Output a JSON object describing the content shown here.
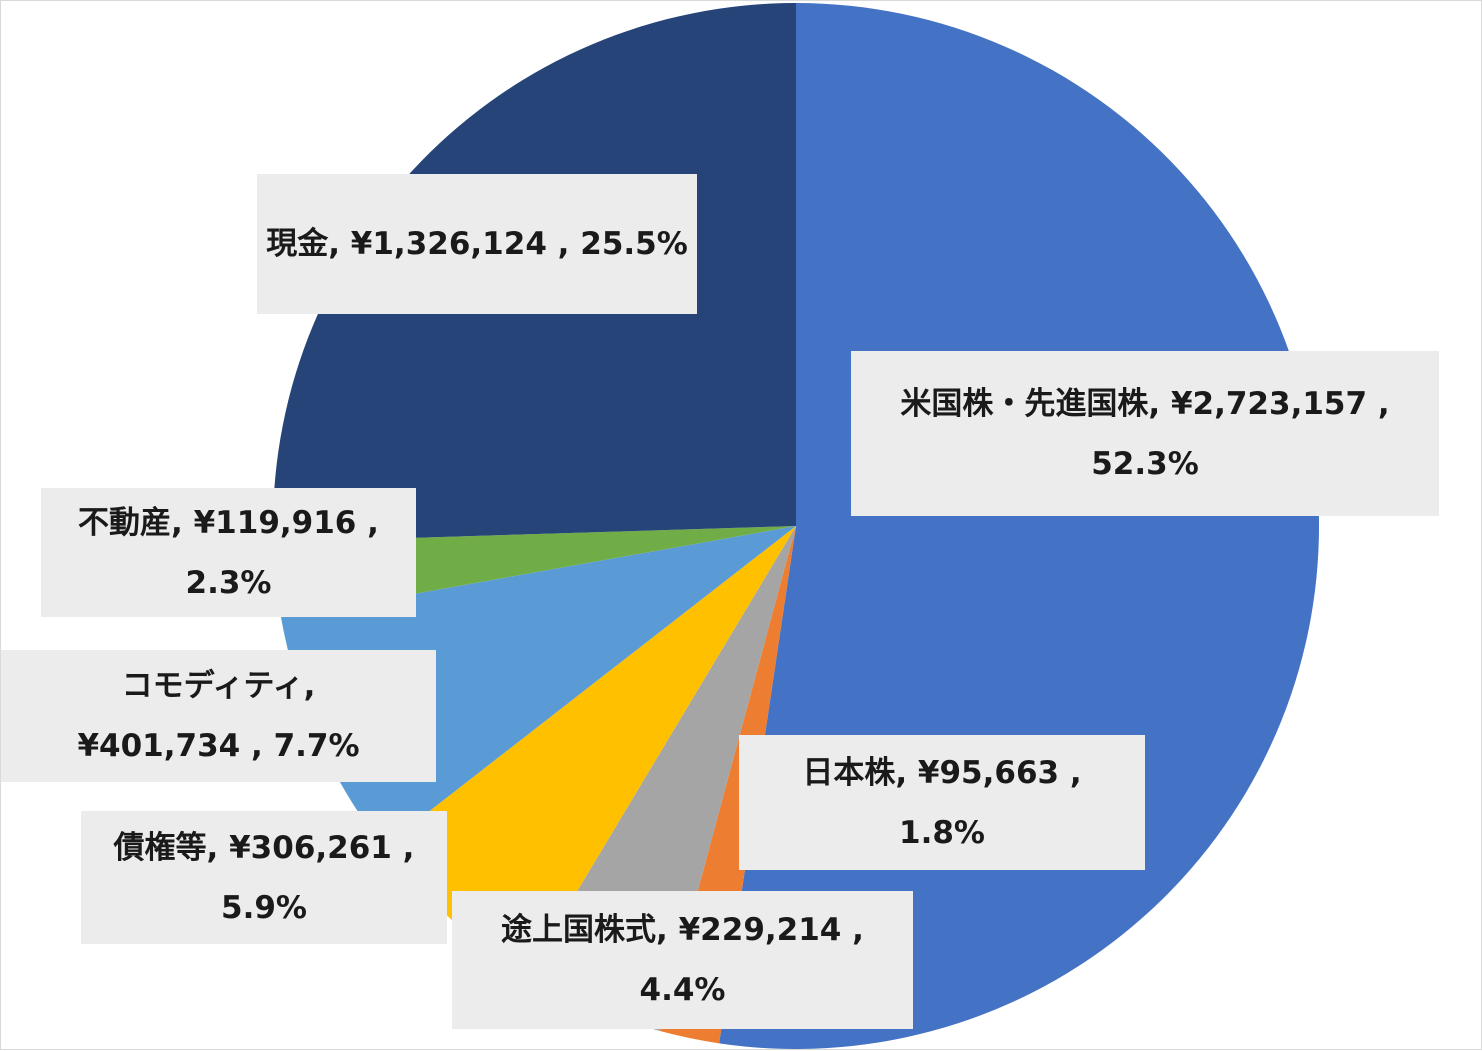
{
  "chart_data": {
    "type": "pie",
    "title": "",
    "start_angle_deg": 0,
    "direction": "clockwise",
    "slices": [
      {
        "category": "米国株・先進国株",
        "value": 2723157,
        "percent": 52.3,
        "value_text": "¥2,723,157",
        "percent_text": "52.3%",
        "color": "#4472c4"
      },
      {
        "category": "日本株",
        "value": 95663,
        "percent": 1.8,
        "value_text": "¥95,663",
        "percent_text": "1.8%",
        "color": "#ed7d31"
      },
      {
        "category": "途上国株式",
        "value": 229214,
        "percent": 4.4,
        "value_text": "¥229,214",
        "percent_text": "4.4%",
        "color": "#a5a5a5"
      },
      {
        "category": "債権等",
        "value": 306261,
        "percent": 5.9,
        "value_text": "¥306,261",
        "percent_text": "5.9%",
        "color": "#ffc000"
      },
      {
        "category": "コモディティ",
        "value": 401734,
        "percent": 7.7,
        "value_text": "¥401,734",
        "percent_text": "7.7%",
        "color": "#5b9bd5"
      },
      {
        "category": "不動産",
        "value": 119916,
        "percent": 2.3,
        "value_text": "¥119,916",
        "percent_text": "2.3%",
        "color": "#70ad47"
      },
      {
        "category": "現金",
        "value": 1326124,
        "percent": 25.5,
        "value_text": "¥1,326,124",
        "percent_text": "25.5%",
        "color": "#264478"
      }
    ],
    "labels": [
      {
        "line1": "米国株・先進国株, ¥2,723,157 ,",
        "line2": "52.3%"
      },
      {
        "line1": "日本株, ¥95,663 ,",
        "line2": "1.8%"
      },
      {
        "line1": "途上国株式, ¥229,214 ,",
        "line2": "4.4%"
      },
      {
        "line1": "債権等, ¥306,261 ,",
        "line2": "5.9%"
      },
      {
        "line1": "コモディティ,",
        "line2": "¥401,734 , 7.7%"
      },
      {
        "line1": "不動産, ¥119,916 ,",
        "line2": "2.3%"
      },
      {
        "line1": "現金, ¥1,326,124 , 25.5%",
        "line2": ""
      }
    ]
  }
}
